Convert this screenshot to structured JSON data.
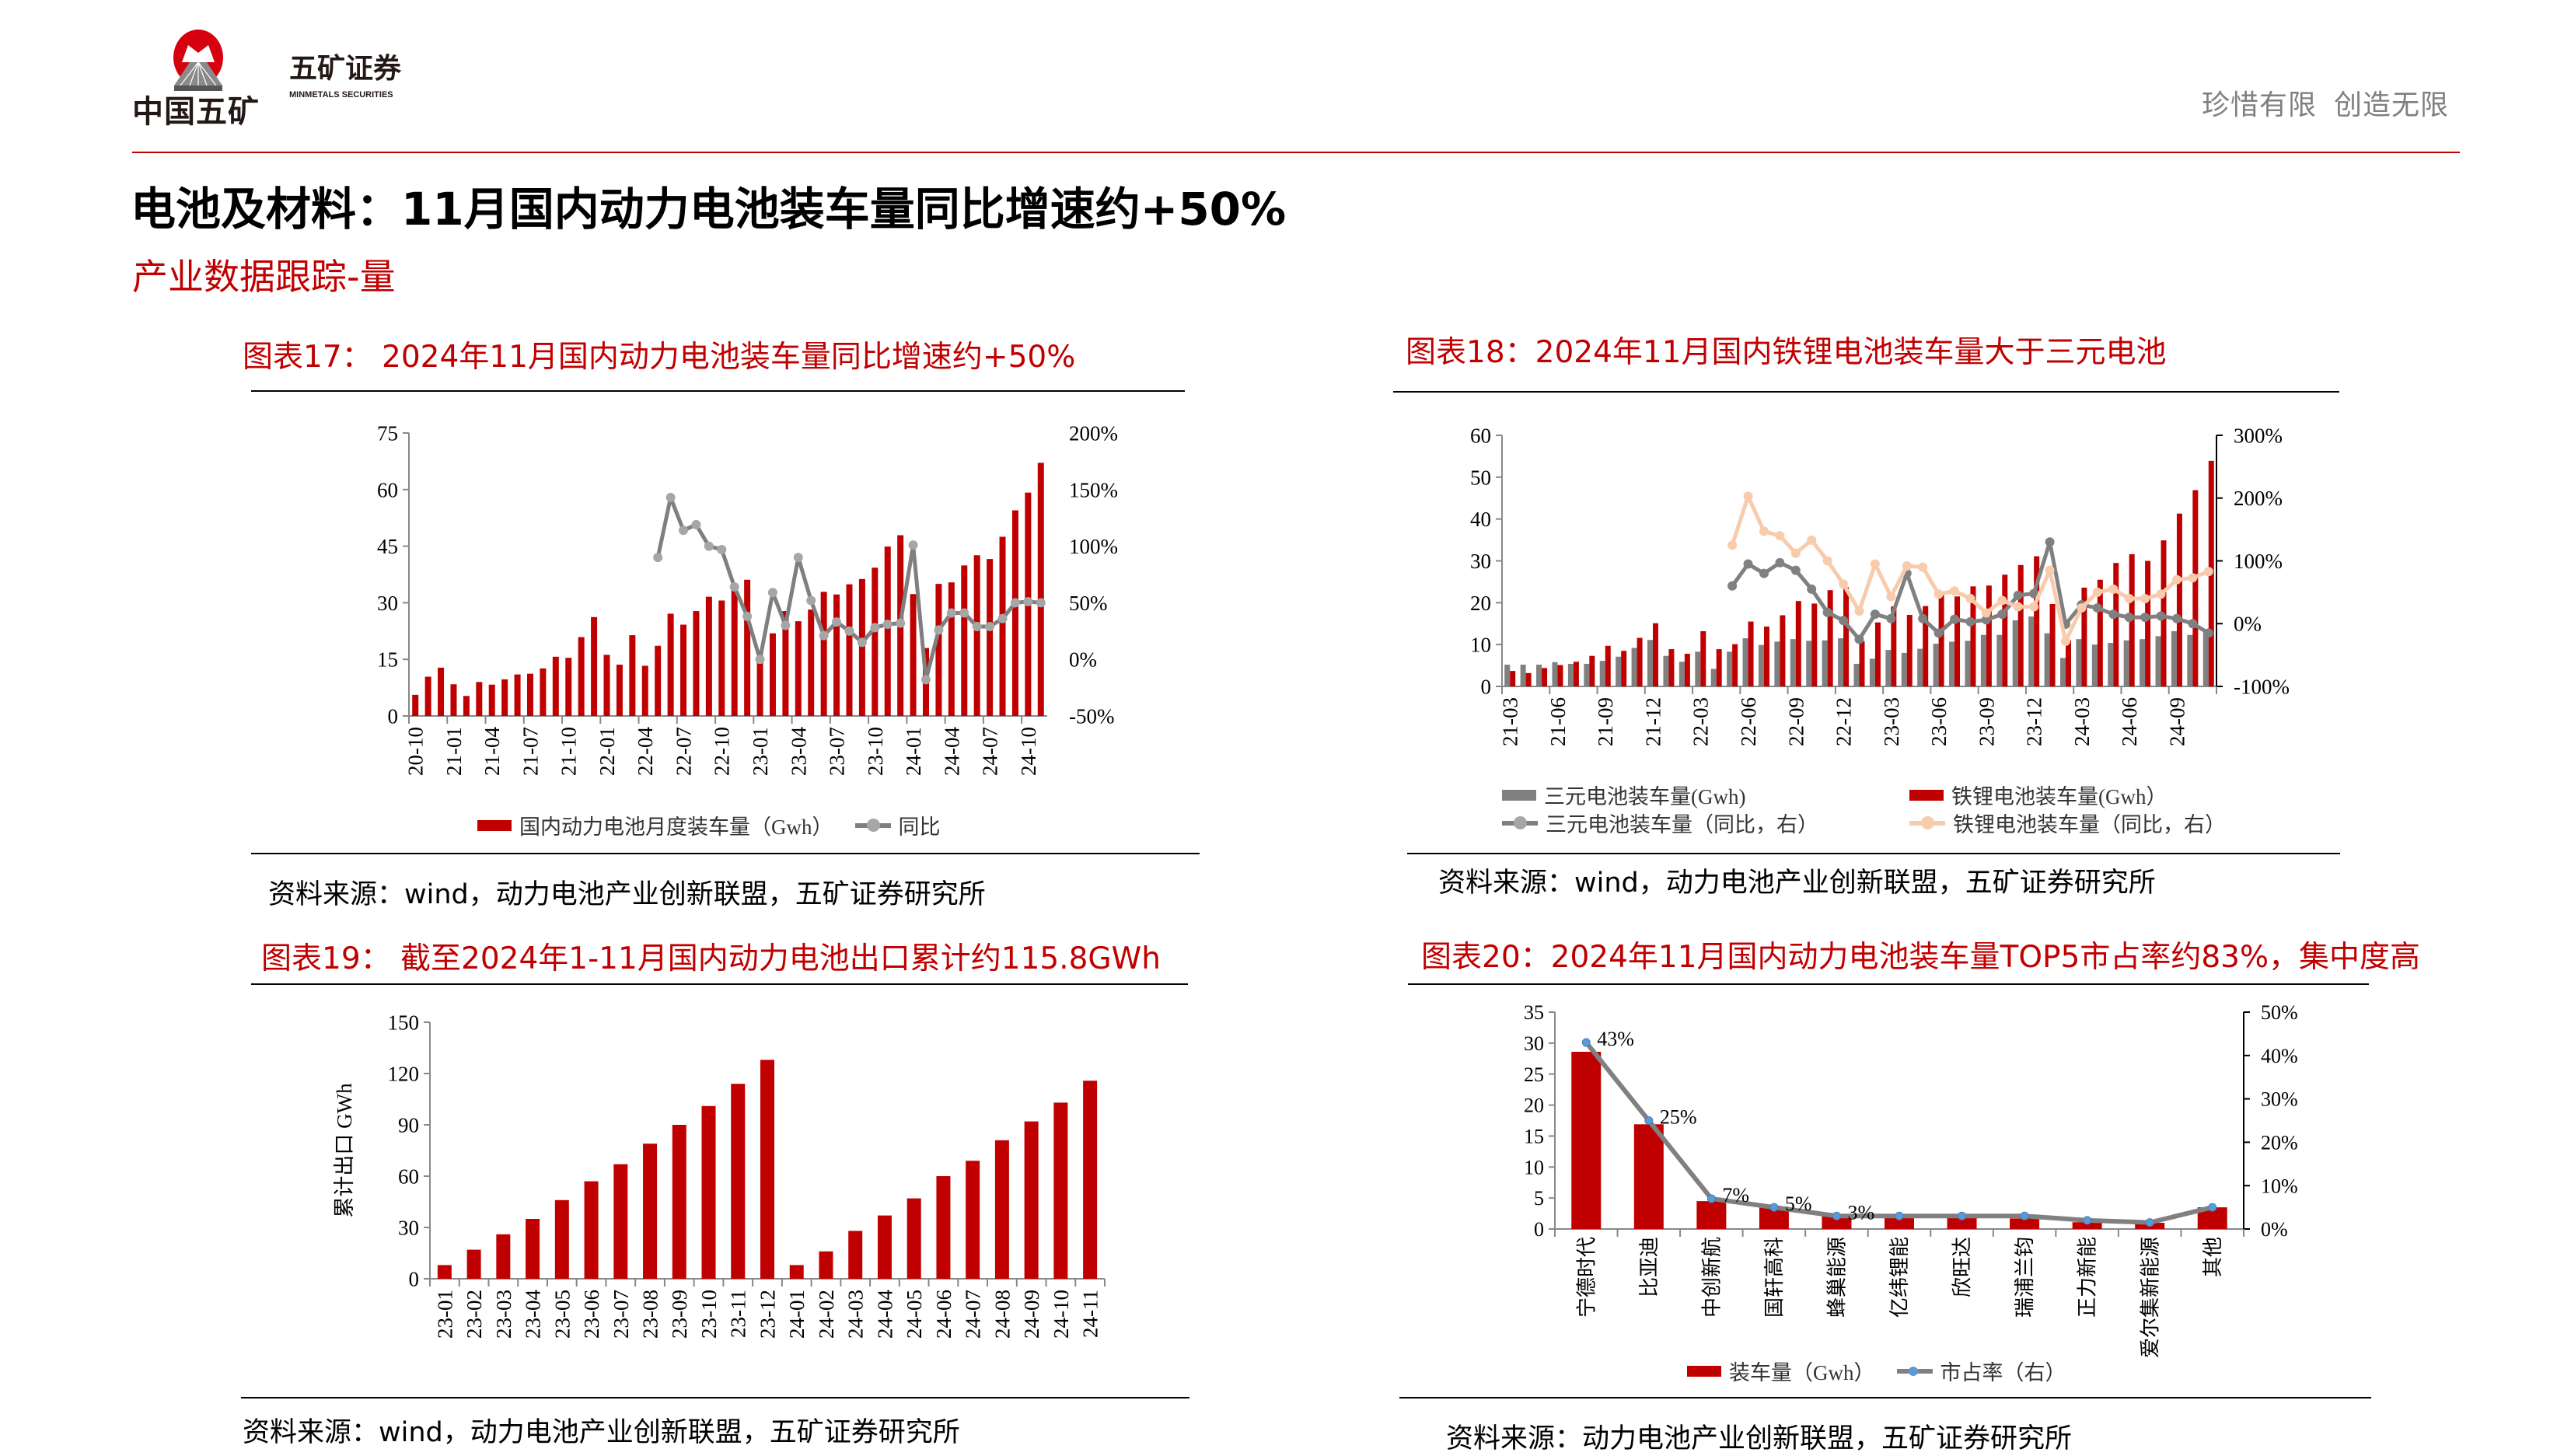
{
  "header": {
    "logo_text": "中国五矿",
    "logo_emblem_text": "MINMETALS",
    "brand": "五矿证券",
    "brand_en": "MINMETALS SECURITIES",
    "slogan_1": "珍惜有限",
    "slogan_2": "创造无限"
  },
  "page": {
    "title": "电池及材料：11月国内动力电池装车量同比增速约+50%",
    "subtitle": "产业数据跟踪-量"
  },
  "colors": {
    "accent": "#C00000",
    "gray": "#808080",
    "lfp_yoy": "#F8CBAD",
    "marker_blue": "#5B9BD5"
  },
  "figures": [
    {
      "title": "图表17： 2024年11月国内动力电池装车量同比增速约+50%",
      "source": "资料来源：wind，动力电池产业创新联盟，五矿证券研究所"
    },
    {
      "title": "图表18：2024年11月国内铁锂电池装车量大于三元电池",
      "source": "资料来源：wind，动力电池产业创新联盟，五矿证券研究所"
    },
    {
      "title": "图表19： 截至2024年1-11月国内动力电池出口累计约115.8GWh",
      "source": "资料来源：wind，动力电池产业创新联盟，五矿证券研究所"
    },
    {
      "title": "图表20：2024年11月国内动力电池装车量TOP5市占率约83%，集中度高",
      "source": "资料来源：动力电池产业创新联盟，五矿证券研究所"
    }
  ],
  "chart_data": [
    {
      "type": "bar+line",
      "categories": [
        "20-10",
        "20-11",
        "20-12",
        "21-01",
        "21-02",
        "21-03",
        "21-04",
        "21-05",
        "21-06",
        "21-07",
        "21-08",
        "21-09",
        "21-10",
        "21-11",
        "21-12",
        "22-01",
        "22-02",
        "22-03",
        "22-04",
        "22-05",
        "22-06",
        "22-07",
        "22-08",
        "22-09",
        "22-10",
        "22-11",
        "22-12",
        "23-01",
        "23-02",
        "23-03",
        "23-04",
        "23-05",
        "23-06",
        "23-07",
        "23-08",
        "23-09",
        "23-10",
        "23-11",
        "23-12",
        "24-01",
        "24-02",
        "24-03",
        "24-04",
        "24-05",
        "24-06",
        "24-07",
        "24-08",
        "24-09",
        "24-10",
        "24-11"
      ],
      "x_tick_labels": [
        "20-10",
        "21-01",
        "21-04",
        "21-07",
        "21-10",
        "22-01",
        "22-04",
        "22-07",
        "22-10",
        "23-01",
        "23-04",
        "23-07",
        "23-10",
        "24-01",
        "24-04",
        "24-07",
        "24-10"
      ],
      "series": [
        {
          "name": "国内动力电池月度装车量（Gwh）",
          "axis": "left",
          "kind": "bar",
          "color": "#C00000",
          "values": [
            5.6,
            10.4,
            12.8,
            8.4,
            5.3,
            9.0,
            8.3,
            9.7,
            11.0,
            11.2,
            12.6,
            15.7,
            15.4,
            20.9,
            26.2,
            16.2,
            13.6,
            21.4,
            13.3,
            18.6,
            27.1,
            24.2,
            27.8,
            31.6,
            30.6,
            34.3,
            36.1,
            16.1,
            21.9,
            27.8,
            25.1,
            28.2,
            32.9,
            32.2,
            34.9,
            36.3,
            39.3,
            44.9,
            47.9,
            32.3,
            18.0,
            35.0,
            35.4,
            39.9,
            42.6,
            41.6,
            47.5,
            54.5,
            59.2,
            67.1
          ]
        },
        {
          "name": "同比",
          "axis": "right",
          "kind": "line",
          "color": "#7F7F7F",
          "unit": "%",
          "values": [
            null,
            null,
            null,
            null,
            null,
            null,
            null,
            null,
            null,
            null,
            null,
            null,
            null,
            null,
            null,
            null,
            null,
            null,
            null,
            90,
            143,
            114,
            119,
            100,
            97,
            64,
            38,
            0,
            59,
            30,
            90,
            52,
            21,
            33,
            25,
            15,
            28,
            31,
            32,
            101,
            -18,
            26,
            41,
            41,
            29,
            29,
            36,
            50,
            51,
            50
          ]
        }
      ],
      "ylim": [
        0,
        75
      ],
      "y_ticks": [
        "0",
        "15",
        "30",
        "45",
        "60",
        "75"
      ],
      "y2lim": [
        -50,
        200
      ],
      "y2_ticks": [
        "-50%",
        "0%",
        "50%",
        "100%",
        "150%",
        "200%"
      ],
      "legend": "bottom",
      "grid": false
    },
    {
      "type": "bar+line",
      "categories": [
        "21-03",
        "21-04",
        "21-05",
        "21-06",
        "21-07",
        "21-08",
        "21-09",
        "21-10",
        "21-11",
        "21-12",
        "22-01",
        "22-02",
        "22-03",
        "22-04",
        "22-05",
        "22-06",
        "22-07",
        "22-08",
        "22-09",
        "22-10",
        "22-11",
        "22-12",
        "23-01",
        "23-02",
        "23-03",
        "23-04",
        "23-05",
        "23-06",
        "23-07",
        "23-08",
        "23-09",
        "23-10",
        "23-11",
        "23-12",
        "24-01",
        "24-02",
        "24-03",
        "24-04",
        "24-05",
        "24-06",
        "24-07",
        "24-08",
        "24-09",
        "24-10",
        "24-11"
      ],
      "x_tick_labels": [
        "21-03",
        "21-06",
        "21-09",
        "21-12",
        "22-03",
        "22-06",
        "22-09",
        "22-12",
        "23-03",
        "23-06",
        "23-09",
        "23-12",
        "24-03",
        "24-06",
        "24-09"
      ],
      "series": [
        {
          "name": "三元电池装车量(Gwh)",
          "axis": "left",
          "kind": "bar",
          "color": "#808080",
          "values": [
            5.2,
            5.2,
            5.2,
            5.8,
            5.4,
            5.4,
            6.1,
            7.1,
            9.2,
            11.1,
            7.3,
            5.9,
            8.3,
            4.2,
            8.3,
            11.5,
            9.9,
            10.7,
            11.3,
            10.9,
            11.0,
            11.5,
            5.4,
            6.6,
            8.7,
            8.0,
            9.0,
            10.2,
            10.7,
            10.9,
            12.3,
            12.3,
            15.8,
            16.7,
            12.7,
            6.8,
            11.3,
            10.0,
            10.4,
            11.0,
            11.3,
            12.0,
            13.2,
            12.3,
            13.0
          ]
        },
        {
          "name": "铁锂电池装车量(Gwh）",
          "axis": "left",
          "kind": "bar",
          "color": "#C00000",
          "values": [
            3.7,
            3.2,
            4.4,
            5.1,
            5.9,
            7.3,
            9.7,
            8.5,
            11.6,
            15.1,
            8.9,
            7.8,
            13.2,
            8.9,
            10.1,
            15.5,
            14.3,
            17.0,
            20.4,
            19.8,
            23.0,
            23.7,
            10.8,
            15.3,
            19.1,
            17.1,
            19.2,
            22.1,
            21.5,
            23.9,
            24.1,
            26.7,
            29.0,
            31.1,
            19.7,
            11.0,
            23.6,
            25.5,
            29.5,
            31.6,
            30.0,
            34.9,
            41.3,
            46.9,
            53.9
          ]
        },
        {
          "name": "三元电池装车量（同比，右）",
          "axis": "right",
          "kind": "line",
          "color": "#808080",
          "unit": "%",
          "values": [
            null,
            null,
            null,
            null,
            null,
            null,
            null,
            null,
            null,
            null,
            null,
            null,
            null,
            null,
            60,
            95,
            80,
            97,
            85,
            55,
            18,
            5,
            -25,
            15,
            8,
            80,
            8,
            -15,
            7,
            3,
            6,
            15,
            45,
            48,
            130,
            -1,
            30,
            25,
            15,
            10,
            10,
            12,
            8,
            0,
            -15
          ]
        },
        {
          "name": "铁锂电池装车量（同比，右）",
          "axis": "right",
          "kind": "line",
          "color": "#F8CBAD",
          "unit": "%",
          "values": [
            null,
            null,
            null,
            null,
            null,
            null,
            null,
            null,
            null,
            null,
            null,
            null,
            null,
            null,
            125,
            203,
            147,
            140,
            112,
            133,
            100,
            63,
            20,
            95,
            43,
            92,
            90,
            47,
            52,
            40,
            17,
            37,
            27,
            27,
            85,
            -28,
            25,
            50,
            55,
            40,
            40,
            47,
            70,
            73,
            83
          ]
        }
      ],
      "ylim": [
        0,
        60
      ],
      "y_ticks": [
        "0",
        "10",
        "20",
        "30",
        "40",
        "50",
        "60"
      ],
      "y2lim": [
        -100,
        300
      ],
      "y2_ticks": [
        "-100%",
        "0%",
        "100%",
        "200%",
        "300%"
      ],
      "legend": "bottom",
      "grid": false
    },
    {
      "type": "bar",
      "categories": [
        "23-01",
        "23-02",
        "23-03",
        "23-04",
        "23-05",
        "23-06",
        "23-07",
        "23-08",
        "23-09",
        "23-10",
        "23-11",
        "23-12",
        "24-01",
        "24-02",
        "24-03",
        "24-04",
        "24-05",
        "24-06",
        "24-07",
        "24-08",
        "24-09",
        "24-10",
        "24-11"
      ],
      "values": [
        8,
        17,
        26,
        35,
        46,
        57,
        67,
        79,
        90,
        101,
        114,
        128,
        8,
        16,
        28,
        37,
        47,
        60,
        69,
        81,
        92,
        103,
        115.8
      ],
      "color": "#C00000",
      "ylabel": "累计出口 GWh",
      "ylim": [
        0,
        150
      ],
      "y_ticks": [
        "0",
        "30",
        "60",
        "90",
        "120",
        "150"
      ],
      "grid": false
    },
    {
      "type": "bar+line",
      "categories": [
        "宁德时代",
        "比亚迪",
        "中创新航",
        "国轩高科",
        "蜂巢能源",
        "亿纬锂能",
        "欣旺达",
        "瑞浦兰钧",
        "正力新能",
        "爱尔集新能源",
        "其他"
      ],
      "series": [
        {
          "name": "装车量（Gwh）",
          "axis": "left",
          "kind": "bar",
          "color": "#C00000",
          "values": [
            28.6,
            16.9,
            4.5,
            3.6,
            2.3,
            2.1,
            1.8,
            1.7,
            1.1,
            1.0,
            3.5
          ]
        },
        {
          "name": "市占率（右）",
          "axis": "right",
          "kind": "line",
          "color": "#808080",
          "unit": "%",
          "values": [
            43,
            25,
            7,
            5,
            3,
            3,
            3,
            3,
            2,
            1.5,
            5
          ],
          "data_labels": [
            "43%",
            "25%",
            "7%",
            "5%",
            "3%",
            null,
            null,
            null,
            null,
            null,
            null
          ]
        }
      ],
      "ylim": [
        0,
        35
      ],
      "y_ticks": [
        "0",
        "5",
        "10",
        "15",
        "20",
        "25",
        "30",
        "35"
      ],
      "y2lim": [
        0,
        50
      ],
      "y2_ticks": [
        "0%",
        "10%",
        "20%",
        "30%",
        "40%",
        "50%"
      ],
      "legend": "bottom",
      "grid": false
    }
  ]
}
